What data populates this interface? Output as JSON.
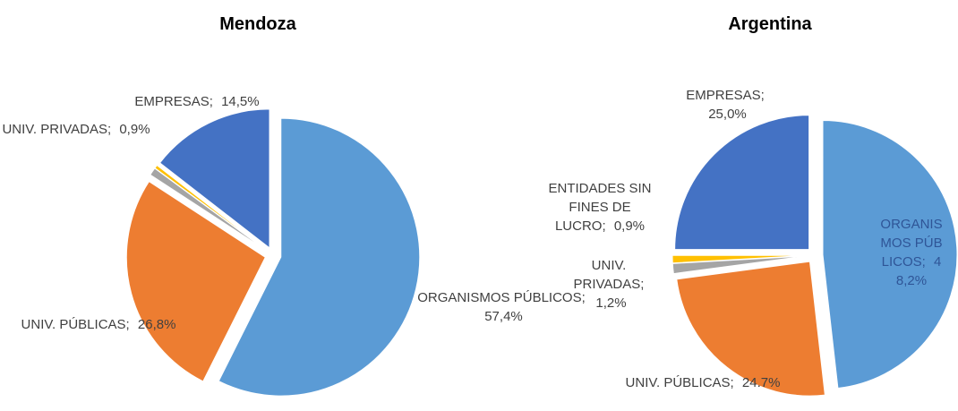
{
  "chart_data": [
    {
      "type": "pie",
      "title": "Mendoza",
      "categories": [
        "ORGANISMOS PÚBLICOS;",
        "UNIV. PÚBLICAS;",
        "UNIV. PRIVADAS;",
        null,
        "EMPRESAS;"
      ],
      "values": [
        57.4,
        26.8,
        0.9,
        0.4,
        14.5
      ],
      "value_labels": [
        "57,4%",
        "26,8%",
        "0,9%",
        null,
        "14,5%"
      ],
      "colors": [
        "#5b9bd5",
        "#ed7d31",
        "#a5a5a5",
        "#ffc000",
        "#4472c4"
      ]
    },
    {
      "type": "pie",
      "title": "Argentina",
      "categories": [
        "ORGANISMOS PÚBLICOS;",
        "UNIV. PÚBLICAS;",
        "UNIV. PRIVADAS;",
        "ENTIDADES SIN FINES DE LUCRO;",
        "EMPRESAS;"
      ],
      "values": [
        48.2,
        24.7,
        1.2,
        0.9,
        25.0
      ],
      "value_labels": [
        "48,2%",
        "24.7%",
        "1,2%",
        "0,9%",
        "25,0%"
      ],
      "colors": [
        "#5b9bd5",
        "#ed7d31",
        "#a5a5a5",
        "#ffc000",
        "#4472c4"
      ]
    }
  ]
}
